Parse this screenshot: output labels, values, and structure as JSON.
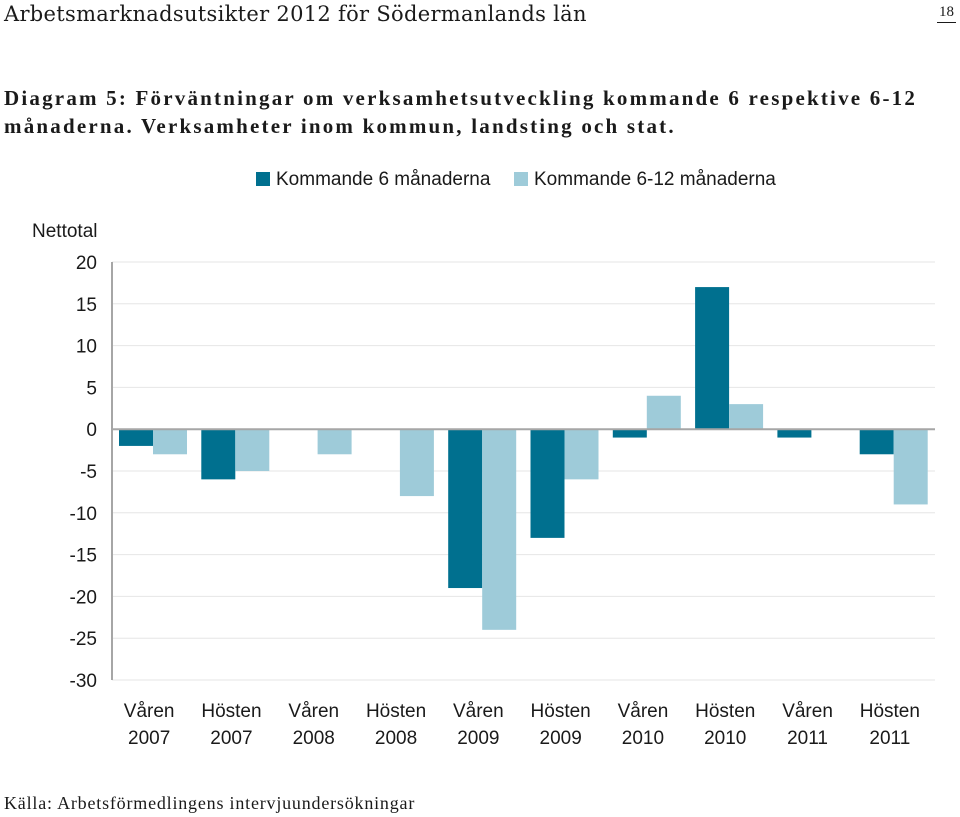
{
  "page": {
    "header_title": "Arbetsmarknadsutsikter 2012  för Södermanlands län",
    "page_number": "18",
    "diagram_title": "Diagram 5: Förväntningar om verksamhetsutveckling kommande 6 respektive 6-12 månaderna. Verksamheter inom kommun, landsting och stat.",
    "source": "Källa: Arbetsförmedlingens intervjuundersökningar"
  },
  "colors": {
    "series1": "#00708f",
    "series2": "#9ecbd9",
    "gridline": "#e6e6e6",
    "axis": "#a6a6a6"
  },
  "chart_data": {
    "type": "bar",
    "title": "",
    "ylabel": "Nettotal",
    "xlabel": "",
    "ylim": [
      -30,
      20
    ],
    "yticks": [
      20,
      15,
      10,
      5,
      0,
      -5,
      -10,
      -15,
      -20,
      -25,
      -30
    ],
    "grid": true,
    "legend_position": "top",
    "categories": [
      [
        "Våren",
        "2007"
      ],
      [
        "Hösten",
        "2007"
      ],
      [
        "Våren",
        "2008"
      ],
      [
        "Hösten",
        "2008"
      ],
      [
        "Våren",
        "2009"
      ],
      [
        "Hösten",
        "2009"
      ],
      [
        "Våren",
        "2010"
      ],
      [
        "Hösten",
        "2010"
      ],
      [
        "Våren",
        "2011"
      ],
      [
        "Hösten",
        "2011"
      ]
    ],
    "series": [
      {
        "name": "Kommande 6 månaderna",
        "values": [
          -2,
          -6,
          0,
          0,
          -19,
          -13,
          -1,
          17,
          -1,
          -3
        ]
      },
      {
        "name": "Kommande 6-12 månaderna",
        "values": [
          -3,
          -5,
          -3,
          -8,
          -24,
          -6,
          4,
          3,
          0,
          -9
        ]
      }
    ]
  }
}
